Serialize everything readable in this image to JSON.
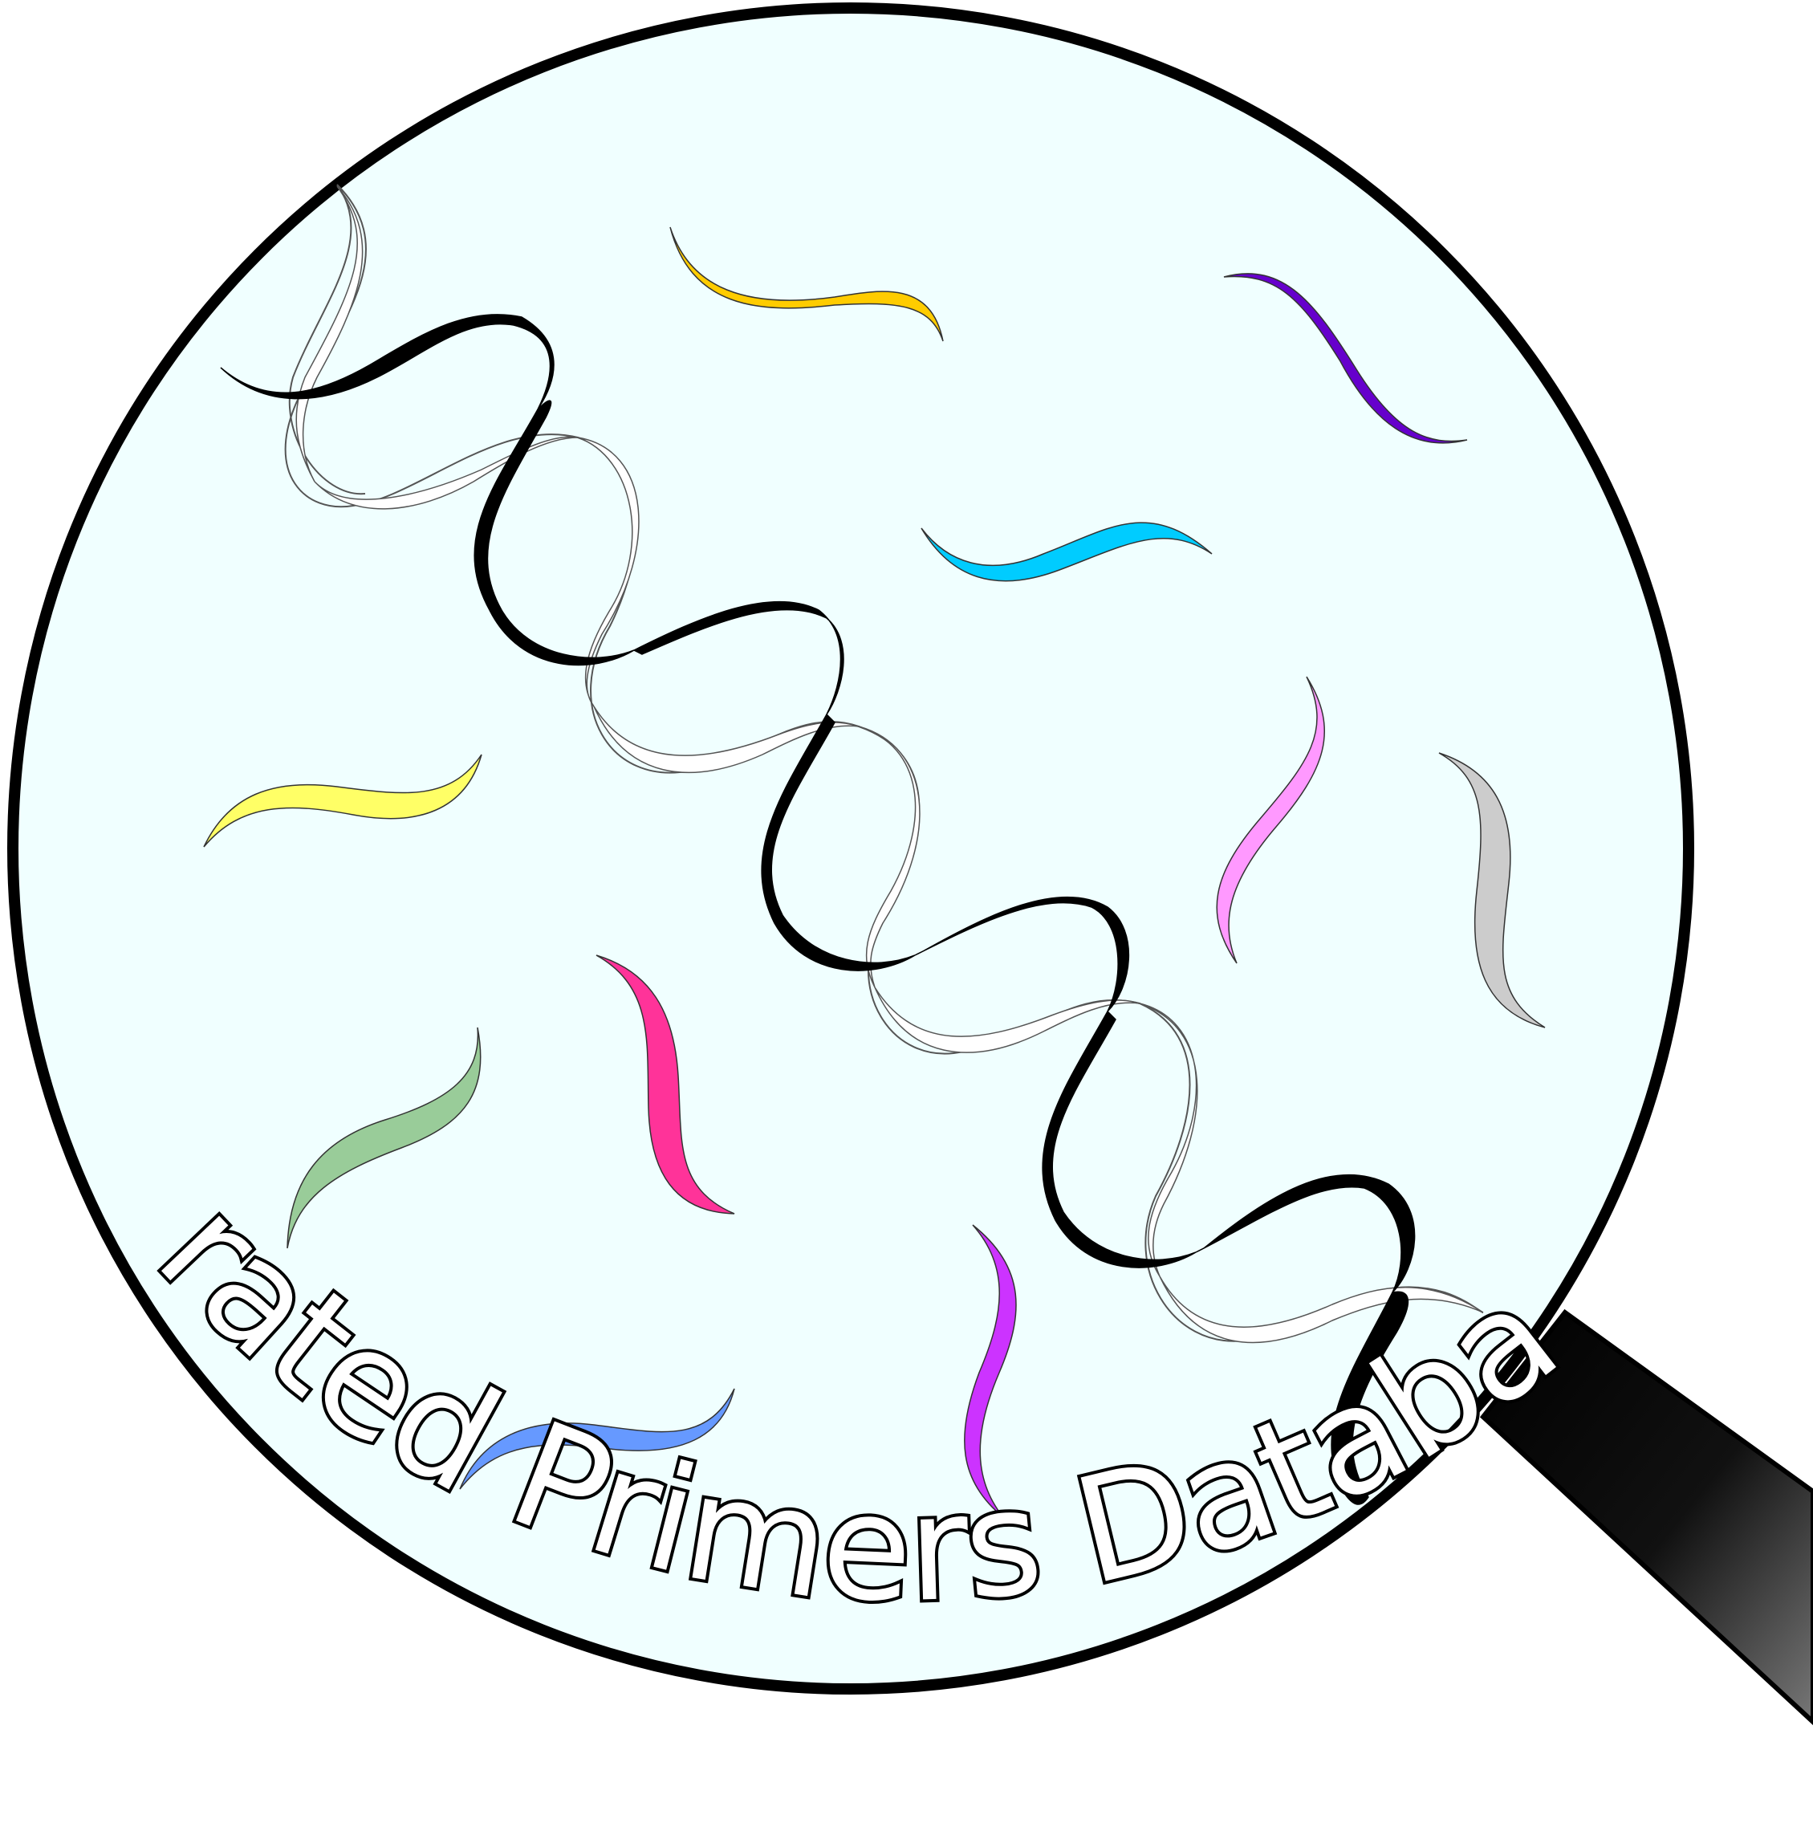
{
  "logo": {
    "text": "Curated Primers Database",
    "lens_fill": "#f0ffff",
    "handle_color": "#000000",
    "primer_colors": {
      "orange": "#ffcc00",
      "purple": "#6600cc",
      "cyan": "#00ccff",
      "yellow": "#ffff66",
      "pink": "#ff99ff",
      "gray": "#cccccc",
      "magenta": "#ff3399",
      "green": "#99cc99",
      "violet": "#cc33ff",
      "blue": "#6699ff"
    }
  }
}
